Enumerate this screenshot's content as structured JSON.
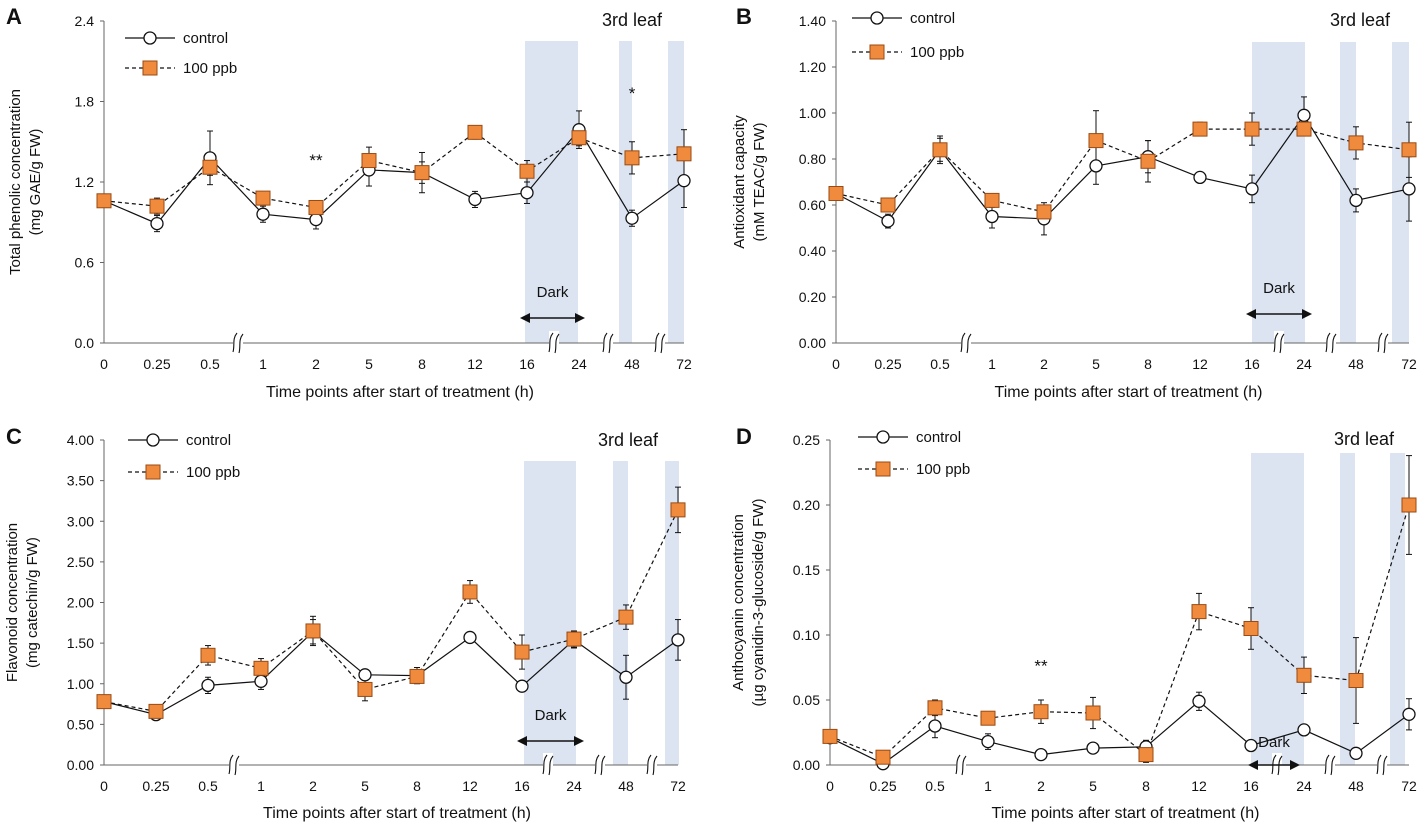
{
  "chart_data": [
    {
      "type": "line",
      "panel": "A",
      "leaf_label": "3rd leaf",
      "ylabel_lines": [
        "Total phenolic concentration",
        "(mg GAE/g FW)"
      ],
      "xlabel": "Time points after start of treatment (h)",
      "categories": [
        "0",
        "0.25",
        "0.5",
        "1",
        "2",
        "5",
        "8",
        "12",
        "16",
        "24",
        "48",
        "72"
      ],
      "ylim": [
        0,
        2.4
      ],
      "yticks": [
        "0.0",
        "0.6",
        "1.2",
        "1.8",
        "2.4"
      ],
      "series": [
        {
          "name": "control",
          "values": [
            1.06,
            0.89,
            1.38,
            0.96,
            0.92,
            1.29,
            1.27,
            1.07,
            1.12,
            1.59,
            0.93,
            1.21
          ],
          "errors": [
            0.03,
            0.06,
            0.2,
            0.06,
            0.07,
            0.12,
            0.15,
            0.06,
            0.08,
            0.14,
            0.06,
            0.2
          ]
        },
        {
          "name": "100 ppb",
          "values": [
            1.06,
            1.02,
            1.31,
            1.08,
            1.01,
            1.36,
            1.27,
            1.57,
            1.28,
            1.53,
            1.38,
            1.41
          ],
          "errors": [
            0.03,
            0.06,
            0.06,
            0.03,
            0.03,
            0.1,
            0.08,
            0.05,
            0.08,
            0.06,
            0.12,
            0.18
          ]
        }
      ],
      "annotations": [
        {
          "category": "2",
          "text": "**",
          "y": 1.32
        },
        {
          "category": "48",
          "text": "*",
          "y": 1.82
        }
      ],
      "dark_label": "Dark"
    },
    {
      "type": "line",
      "panel": "B",
      "leaf_label": "3rd leaf",
      "ylabel_lines": [
        "Antioxidant capacity",
        "(mM TEAC/g FW)"
      ],
      "xlabel": "Time points after start of treatment (h)",
      "categories": [
        "0",
        "0.25",
        "0.5",
        "1",
        "2",
        "5",
        "8",
        "12",
        "16",
        "24",
        "48",
        "72"
      ],
      "ylim": [
        0,
        1.4
      ],
      "yticks": [
        "0.00",
        "0.20",
        "0.40",
        "0.60",
        "0.80",
        "1.00",
        "1.20",
        "1.40"
      ],
      "series": [
        {
          "name": "control",
          "values": [
            0.65,
            0.53,
            0.84,
            0.55,
            0.54,
            0.77,
            0.81,
            0.72,
            0.67,
            0.99,
            0.62,
            0.67
          ],
          "errors": [
            0.02,
            0.03,
            0.06,
            0.05,
            0.07,
            0.08,
            0.07,
            0.01,
            0.06,
            0.08,
            0.05,
            0.14
          ]
        },
        {
          "name": "100 ppb",
          "values": [
            0.65,
            0.6,
            0.84,
            0.62,
            0.57,
            0.88,
            0.79,
            0.93,
            0.93,
            0.93,
            0.87,
            0.84
          ],
          "errors": [
            0.02,
            0.02,
            0.05,
            0.03,
            0.03,
            0.13,
            0.09,
            0.03,
            0.07,
            0.03,
            0.07,
            0.12
          ]
        }
      ],
      "annotations": [],
      "dark_label": "Dark"
    },
    {
      "type": "line",
      "panel": "C",
      "leaf_label": "3rd leaf",
      "ylabel_lines": [
        "Flavonoid concentration",
        "(mg catechin/g FW)"
      ],
      "xlabel": "Time points after start of treatment (h)",
      "categories": [
        "0",
        "0.25",
        "0.5",
        "1",
        "2",
        "5",
        "8",
        "12",
        "16",
        "24",
        "48",
        "72"
      ],
      "ylim": [
        0,
        4.0
      ],
      "yticks": [
        "0.00",
        "0.50",
        "1.00",
        "1.50",
        "2.00",
        "2.50",
        "3.00",
        "3.50",
        "4.00"
      ],
      "series": [
        {
          "name": "control",
          "values": [
            0.78,
            0.62,
            0.98,
            1.03,
            1.64,
            1.11,
            1.1,
            1.57,
            0.97,
            1.54,
            1.08,
            1.54
          ],
          "errors": [
            0.03,
            0.05,
            0.1,
            0.1,
            0.15,
            0.05,
            0.1,
            0.05,
            0.05,
            0.1,
            0.27,
            0.25
          ]
        },
        {
          "name": "100 ppb",
          "values": [
            0.78,
            0.66,
            1.35,
            1.19,
            1.65,
            0.93,
            1.09,
            2.13,
            1.39,
            1.55,
            1.82,
            3.14
          ],
          "errors": [
            0.03,
            0.04,
            0.12,
            0.12,
            0.18,
            0.14,
            0.08,
            0.14,
            0.21,
            0.1,
            0.15,
            0.28
          ]
        }
      ],
      "annotations": [],
      "dark_label": "Dark"
    },
    {
      "type": "line",
      "panel": "D",
      "leaf_label": "3rd leaf",
      "ylabel_lines": [
        "Anthocyanin concentration",
        "(µg cyanidin-3-glucoside/g FW)"
      ],
      "xlabel": "Time points after start of treatment (h)",
      "categories": [
        "0",
        "0.25",
        "0.5",
        "1",
        "2",
        "5",
        "8",
        "12",
        "16",
        "24",
        "48",
        "72"
      ],
      "ylim": [
        0,
        0.25
      ],
      "yticks": [
        "0.00",
        "0.05",
        "0.10",
        "0.15",
        "0.20",
        "0.25"
      ],
      "series": [
        {
          "name": "control",
          "values": [
            0.021,
            0.001,
            0.03,
            0.018,
            0.008,
            0.013,
            0.014,
            0.049,
            0.015,
            0.027,
            0.009,
            0.039
          ],
          "errors": [
            0.003,
            0.002,
            0.009,
            0.006,
            0.002,
            0.004,
            0.005,
            0.007,
            0.004,
            0.004,
            0.004,
            0.012
          ]
        },
        {
          "name": "100 ppb",
          "values": [
            0.022,
            0.006,
            0.044,
            0.036,
            0.041,
            0.04,
            0.008,
            0.118,
            0.105,
            0.069,
            0.065,
            0.2
          ],
          "errors": [
            0.003,
            0.002,
            0.006,
            0.005,
            0.009,
            0.012,
            0.006,
            0.014,
            0.016,
            0.014,
            0.033,
            0.038
          ]
        }
      ],
      "annotations": [
        {
          "category": "2",
          "text": "**",
          "y": 0.072
        }
      ],
      "dark_label": "Dark"
    }
  ],
  "colors": {
    "control_marker_fill": "#ffffff",
    "treatment_marker_fill": "#f08a3c",
    "treatment_marker_stroke": "#9a4a12",
    "shade": "#dce4f2",
    "line": "#111111"
  }
}
